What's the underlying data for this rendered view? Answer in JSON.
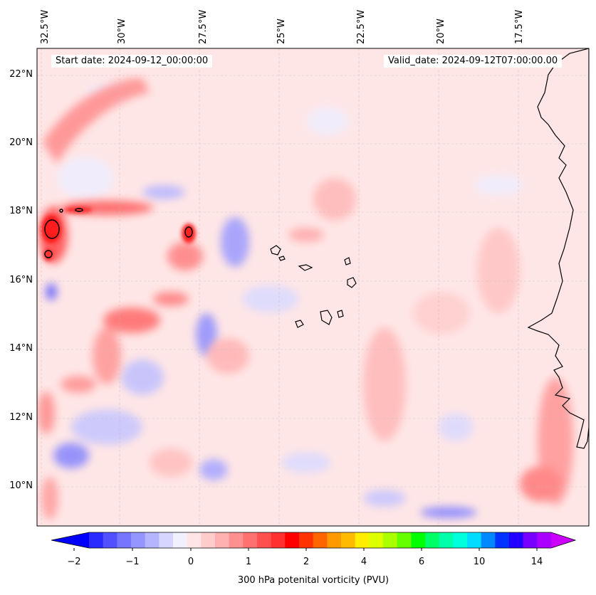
{
  "map": {
    "start_date": "Start date: 2024-09-12_00:00:00",
    "valid_date": "Valid_date: 2024-09-12T07:00:00.00",
    "lon_labels": [
      "32.5°W",
      "30°W",
      "27.5°W",
      "25°W",
      "22.5°W",
      "20°W",
      "17.5°W"
    ],
    "lat_labels": [
      "22°N",
      "20°N",
      "18°N",
      "16°N",
      "14°N",
      "12°N",
      "10°N"
    ],
    "land_label": "",
    "islands": "Cabo Verde islands"
  },
  "colorbar": {
    "label": "300 hPa potenital vorticity (PVU)",
    "ticks": [
      "−2",
      "−1",
      "0",
      "1",
      "2",
      "4",
      "6",
      "10",
      "14"
    ],
    "colors": [
      "#0000ff",
      "#2a2aff",
      "#5050ff",
      "#7575ff",
      "#9595ff",
      "#b5b5ff",
      "#d5d5ff",
      "#f0f0ff",
      "#ffe5e5",
      "#ffcccc",
      "#ffb0b0",
      "#ff9090",
      "#ff7070",
      "#ff5050",
      "#ff3030",
      "#ff0000",
      "#ff3300",
      "#ff6600",
      "#ff9900",
      "#ffbb00",
      "#ffee00",
      "#ddff00",
      "#aaff00",
      "#66ff00",
      "#00ff00",
      "#00ff66",
      "#00ffaa",
      "#00ffdd",
      "#00ddff",
      "#0088ff",
      "#0033ff",
      "#2200ff",
      "#7700ff",
      "#aa00ff",
      "#cc00ff"
    ]
  }
}
